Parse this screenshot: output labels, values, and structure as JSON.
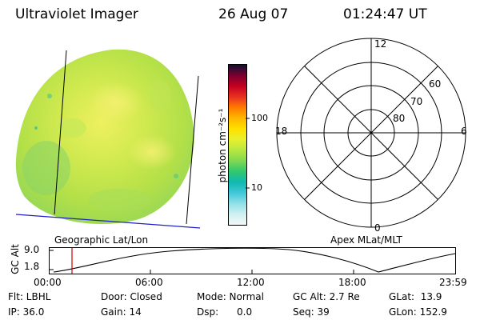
{
  "header": {
    "instrument": "Ultraviolet Imager",
    "date": "26 Aug 07",
    "time": "01:24:47 UT"
  },
  "colorbar": {
    "unit_label": "photon cm⁻²s⁻¹",
    "ticks": [
      "100",
      "10"
    ],
    "colors": [
      "#111133",
      "#7a0030",
      "#c40020",
      "#e83020",
      "#ff7a00",
      "#ffb800",
      "#ffe000",
      "#e8f030",
      "#b8e840",
      "#80d850",
      "#30c870",
      "#10b8b0",
      "#40c8d8",
      "#90e0e8",
      "#d0f0f0",
      "#f4f8f8"
    ]
  },
  "polar": {
    "mlt_labels": {
      "top": "12",
      "left": "18",
      "right": "6",
      "bottom": "0"
    },
    "lat_labels": [
      "60",
      "70",
      "80"
    ]
  },
  "image_panel": {
    "label": "Geographic Lat/Lon"
  },
  "polar_panel": {
    "label": "Apex MLat/MLT"
  },
  "altitude_plot": {
    "ylabel": "GC Alt",
    "yticks": [
      "9.0",
      "1.8"
    ],
    "xticks": [
      "00:00",
      "06:00",
      "12:00",
      "18:00",
      "23:59"
    ],
    "marker_color": "#cc0000"
  },
  "info": {
    "flt": "Flt: LBHL",
    "ip": "IP: 36.0",
    "door": "Door: Closed",
    "gain": "Gain: 14",
    "mode": "Mode: Normal",
    "dsp": "Dsp:      0.0",
    "gc_alt": "GC Alt: 2.7 Re",
    "seq": "Seq: 39",
    "glat": "GLat:  13.9",
    "glon": "GLon: 152.9"
  }
}
